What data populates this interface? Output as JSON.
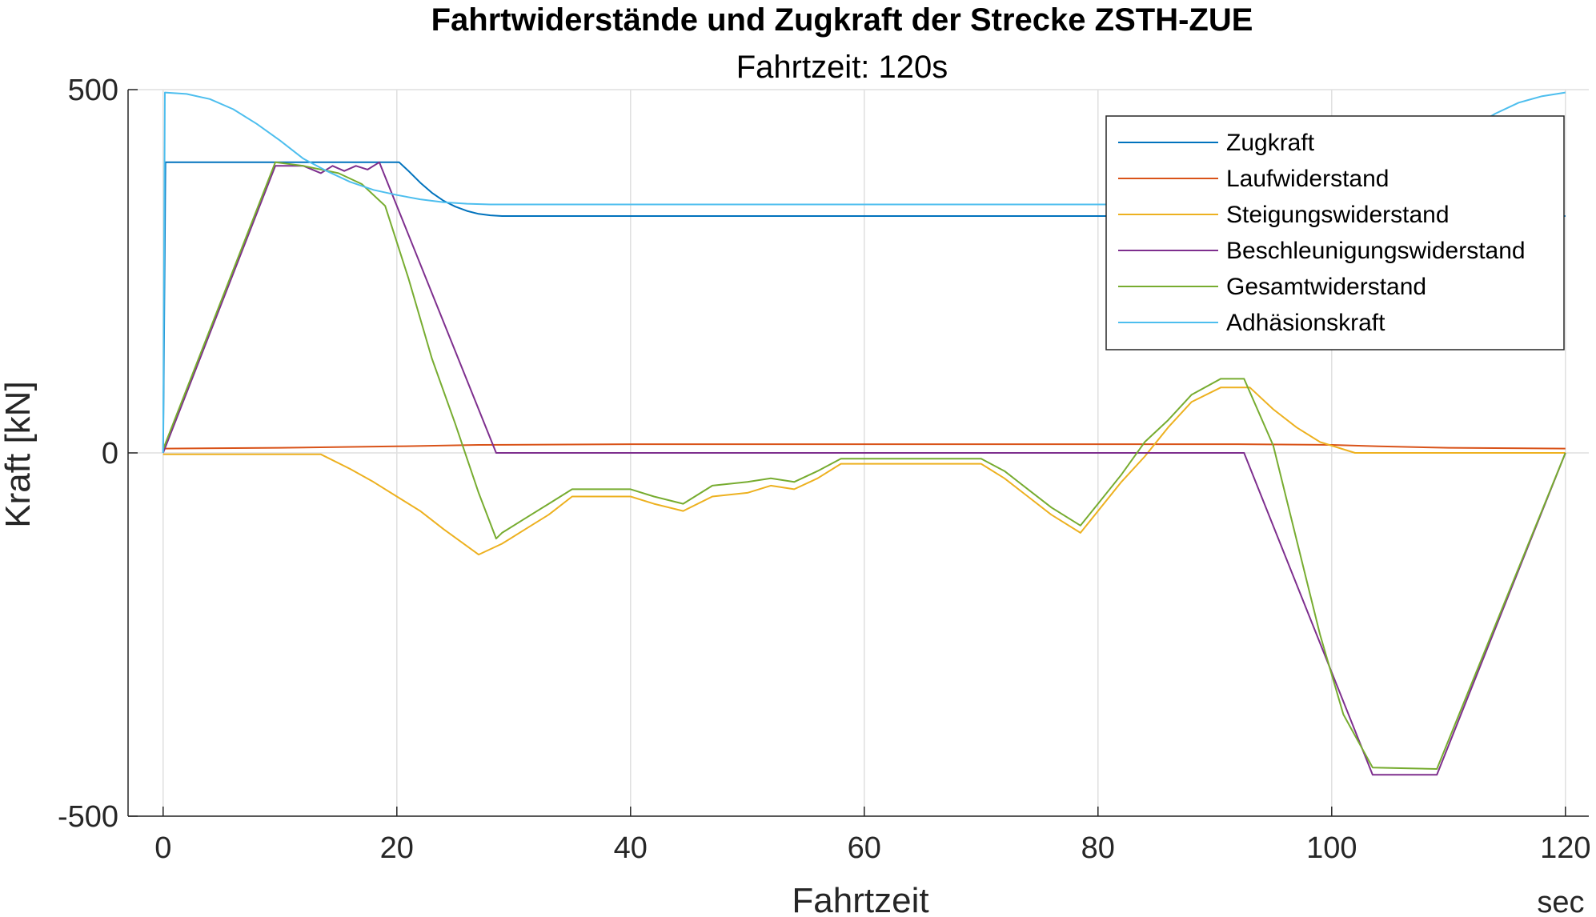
{
  "chart_data": {
    "type": "line",
    "title": "Fahrtwiderstände und Zugkraft der Strecke ZSTH-ZUE",
    "subtitle": "Fahrtzeit: 120s",
    "xlabel": "Fahrtzeit",
    "xunit": "sec",
    "ylabel": "Kraft [kN]",
    "xlim": [
      -3,
      122
    ],
    "ylim": [
      -500,
      500
    ],
    "xticks": [
      0,
      20,
      40,
      60,
      80,
      100,
      120
    ],
    "yticks": [
      -500,
      0,
      500
    ],
    "grid": true,
    "legend_position": "top-right",
    "series": [
      {
        "name": "Zugkraft",
        "color": "#0072BD",
        "x": [
          0,
          0.2,
          20.2,
          21,
          22,
          23,
          24,
          25,
          26,
          27,
          28,
          29,
          30,
          120
        ],
        "y": [
          0,
          400,
          400,
          388,
          372,
          358,
          347,
          339,
          333,
          329,
          327,
          326,
          326,
          326
        ]
      },
      {
        "name": "Laufwiderstand",
        "color": "#D95319",
        "x": [
          0,
          10,
          20,
          27,
          40,
          60,
          80,
          92,
          100,
          104,
          110,
          120
        ],
        "y": [
          6,
          7,
          9,
          11,
          12,
          12,
          12,
          12,
          11,
          9,
          7,
          6
        ]
      },
      {
        "name": "Steigungswiderstand",
        "color": "#EDB120",
        "x": [
          0,
          13.5,
          16,
          18,
          20,
          22,
          24,
          27,
          29,
          31,
          33,
          35,
          40,
          42,
          44.5,
          47,
          50,
          52,
          54,
          56,
          58,
          70,
          72,
          74,
          76,
          78.5,
          80,
          82,
          84,
          86,
          88,
          90.5,
          93,
          95,
          97,
          99,
          101,
          102,
          120
        ],
        "y": [
          -2,
          -2,
          -22,
          -40,
          -60,
          -80,
          -105,
          -140,
          -125,
          -105,
          -85,
          -60,
          -60,
          -70,
          -80,
          -60,
          -55,
          -45,
          -50,
          -35,
          -15,
          -15,
          -35,
          -60,
          -85,
          -110,
          -80,
          -40,
          -5,
          35,
          70,
          90,
          90,
          60,
          35,
          15,
          5,
          0,
          0
        ]
      },
      {
        "name": "Beschleunigungswiderstand",
        "color": "#7E2F8E",
        "x": [
          0,
          9.6,
          12,
          13.5,
          14.5,
          15.5,
          16.5,
          17.5,
          18.5,
          28.5,
          92.5,
          103.5,
          109,
          120
        ],
        "y": [
          0,
          395,
          395,
          385,
          395,
          388,
          395,
          390,
          400,
          0,
          0,
          -443,
          -443,
          0
        ]
      },
      {
        "name": "Gesamtwiderstand",
        "color": "#77AC30",
        "x": [
          0,
          9.6,
          12,
          15,
          17,
          19,
          21,
          23,
          25,
          27,
          28.5,
          29,
          31,
          33,
          35,
          40,
          42,
          44.5,
          47,
          50,
          52,
          54,
          56,
          58,
          70,
          72,
          74,
          76,
          78.5,
          80,
          82,
          84,
          86,
          88,
          90.5,
          92.5,
          95,
          97,
          99,
          101,
          103.5,
          109,
          120
        ],
        "y": [
          5,
          400,
          395,
          385,
          370,
          340,
          240,
          130,
          40,
          -55,
          -118,
          -110,
          -90,
          -70,
          -50,
          -50,
          -60,
          -70,
          -45,
          -40,
          -35,
          -40,
          -25,
          -8,
          -8,
          -25,
          -50,
          -75,
          -100,
          -70,
          -30,
          15,
          45,
          80,
          102,
          102,
          10,
          -120,
          -250,
          -360,
          -433,
          -435,
          0
        ]
      },
      {
        "name": "Adhäsionskraft",
        "color": "#4DBEEE",
        "x": [
          0,
          0.15,
          2,
          4,
          6,
          8,
          10,
          12,
          14,
          16,
          18,
          20,
          22,
          24,
          26,
          28,
          30,
          107,
          108,
          110,
          112,
          114,
          116,
          118,
          120
        ],
        "y": [
          0,
          496,
          494,
          487,
          473,
          453,
          430,
          405,
          388,
          373,
          362,
          355,
          349,
          345,
          343,
          342,
          342,
          342,
          380,
          421,
          448,
          467,
          482,
          491,
          496
        ]
      }
    ]
  }
}
